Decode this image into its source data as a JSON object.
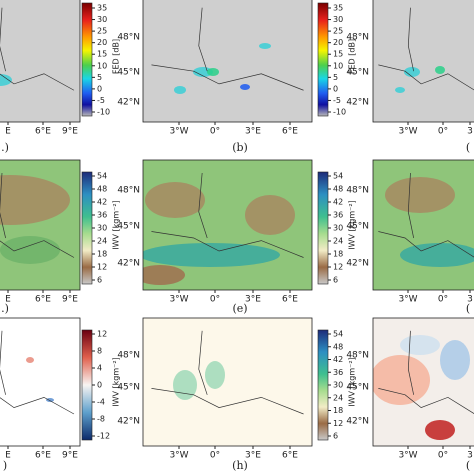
{
  "panels": [
    {
      "label": ".)",
      "yticks": [],
      "xticks": [
        "E",
        "6°E",
        "9°E"
      ],
      "colorbar": {
        "label": "FED [dB]",
        "ticks": [
          35,
          30,
          25,
          20,
          15,
          10,
          5,
          0,
          -5,
          -10
        ]
      }
    },
    {
      "label": "(b)",
      "yticks": [
        "48°N",
        "45°N",
        "42°N"
      ],
      "xticks": [
        "3°W",
        "0°",
        "3°E",
        "6°E"
      ],
      "colorbar": {
        "label": "FED [dB]",
        "ticks": [
          35,
          30,
          25,
          20,
          15,
          10,
          5,
          0,
          -5,
          -10
        ]
      }
    },
    {
      "label": "(",
      "yticks": [
        "48°N",
        "45°N",
        "42°N"
      ],
      "xticks": [
        "3°W",
        "0°",
        "3"
      ]
    },
    {
      "label": ".)",
      "yticks": [],
      "xticks": [
        "E",
        "6°E",
        "9°E"
      ],
      "colorbar": {
        "label": "IWV [kgm⁻²]",
        "ticks": [
          54,
          48,
          42,
          36,
          30,
          24,
          18,
          12,
          6
        ]
      }
    },
    {
      "label": "(e)",
      "yticks": [
        "48°N",
        "45°N",
        "42°N"
      ],
      "xticks": [
        "3°W",
        "0°",
        "3°E",
        "6°E"
      ],
      "colorbar": {
        "label": "IWV [kgm⁻²]",
        "ticks": [
          54,
          48,
          42,
          36,
          30,
          24,
          18,
          12,
          6
        ]
      }
    },
    {
      "label": "(",
      "yticks": [
        "48°N",
        "45°N",
        "42°N"
      ],
      "xticks": [
        "3°W",
        "0°",
        "3"
      ]
    },
    {
      "label": ")",
      "yticks": [],
      "xticks": [
        "E",
        "6°E",
        "9°E"
      ],
      "colorbar": {
        "label": "IWV [kgm⁻²]",
        "ticks": [
          12,
          8,
          4,
          0,
          -4,
          -8,
          -12
        ]
      }
    },
    {
      "label": "(h)",
      "yticks": [
        "48°N",
        "45°N",
        "42°N"
      ],
      "xticks": [
        "3°W",
        "0°",
        "3°E",
        "6°E"
      ],
      "colorbar": {
        "label": "IWV [kgm⁻²]",
        "ticks": [
          54,
          48,
          42,
          36,
          30,
          24,
          18,
          12,
          6
        ]
      }
    },
    {
      "label": "(",
      "yticks": [
        "48°N",
        "45°N",
        "42°N"
      ],
      "xticks": [
        "3°W",
        "0°",
        "3"
      ]
    }
  ]
}
